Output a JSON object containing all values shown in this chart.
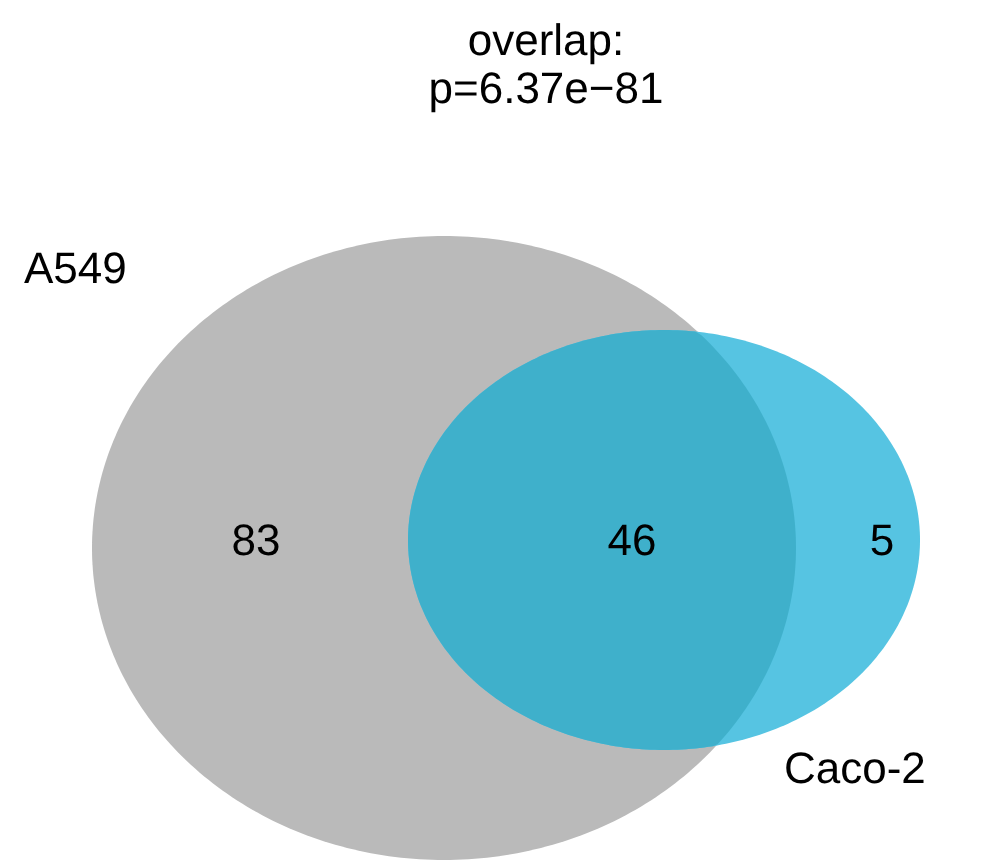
{
  "chart_data": {
    "type": "other",
    "title": "overlap:",
    "subtitle": "p=6.37e−81",
    "categories": [
      null,
      null,
      null
    ],
    "values": [
      83,
      46,
      5
    ],
    "colors": [
      "#bababa",
      "#3fb0cb",
      "#56c4e2"
    ],
    "data_labels": true,
    "annotations": [
      "A549",
      "Caco-2"
    ]
  }
}
